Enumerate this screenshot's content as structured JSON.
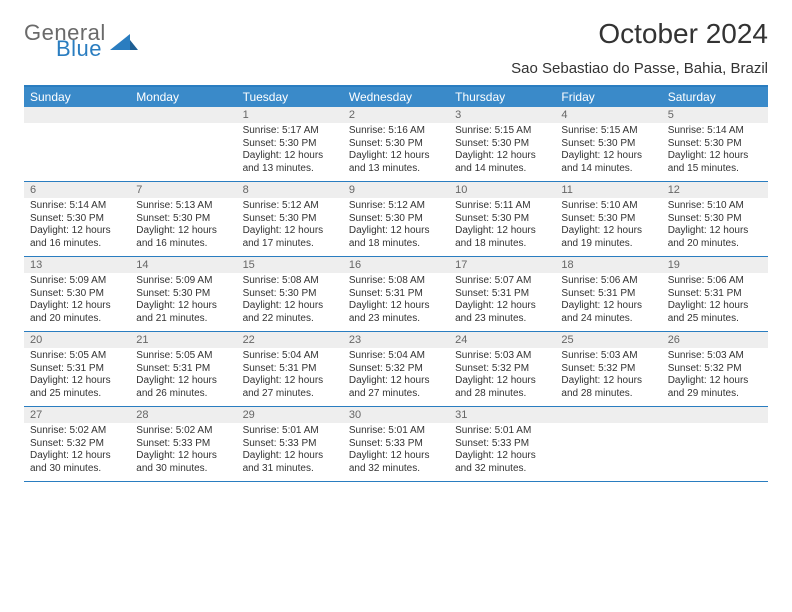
{
  "logo": {
    "word1": "General",
    "word2": "Blue"
  },
  "title": "October 2024",
  "location": "Sao Sebastiao do Passe, Bahia, Brazil",
  "colors": {
    "header_bar": "#3a8ac9",
    "border": "#2a7dc0",
    "daynum_bg": "#eeeeee",
    "text": "#333333",
    "logo_gray": "#6a6a6a",
    "logo_blue": "#2a7dc0"
  },
  "day_headers": [
    "Sunday",
    "Monday",
    "Tuesday",
    "Wednesday",
    "Thursday",
    "Friday",
    "Saturday"
  ],
  "weeks": [
    [
      {
        "n": "",
        "lines": []
      },
      {
        "n": "",
        "lines": []
      },
      {
        "n": "1",
        "lines": [
          "Sunrise: 5:17 AM",
          "Sunset: 5:30 PM",
          "Daylight: 12 hours",
          "and 13 minutes."
        ]
      },
      {
        "n": "2",
        "lines": [
          "Sunrise: 5:16 AM",
          "Sunset: 5:30 PM",
          "Daylight: 12 hours",
          "and 13 minutes."
        ]
      },
      {
        "n": "3",
        "lines": [
          "Sunrise: 5:15 AM",
          "Sunset: 5:30 PM",
          "Daylight: 12 hours",
          "and 14 minutes."
        ]
      },
      {
        "n": "4",
        "lines": [
          "Sunrise: 5:15 AM",
          "Sunset: 5:30 PM",
          "Daylight: 12 hours",
          "and 14 minutes."
        ]
      },
      {
        "n": "5",
        "lines": [
          "Sunrise: 5:14 AM",
          "Sunset: 5:30 PM",
          "Daylight: 12 hours",
          "and 15 minutes."
        ]
      }
    ],
    [
      {
        "n": "6",
        "lines": [
          "Sunrise: 5:14 AM",
          "Sunset: 5:30 PM",
          "Daylight: 12 hours",
          "and 16 minutes."
        ]
      },
      {
        "n": "7",
        "lines": [
          "Sunrise: 5:13 AM",
          "Sunset: 5:30 PM",
          "Daylight: 12 hours",
          "and 16 minutes."
        ]
      },
      {
        "n": "8",
        "lines": [
          "Sunrise: 5:12 AM",
          "Sunset: 5:30 PM",
          "Daylight: 12 hours",
          "and 17 minutes."
        ]
      },
      {
        "n": "9",
        "lines": [
          "Sunrise: 5:12 AM",
          "Sunset: 5:30 PM",
          "Daylight: 12 hours",
          "and 18 minutes."
        ]
      },
      {
        "n": "10",
        "lines": [
          "Sunrise: 5:11 AM",
          "Sunset: 5:30 PM",
          "Daylight: 12 hours",
          "and 18 minutes."
        ]
      },
      {
        "n": "11",
        "lines": [
          "Sunrise: 5:10 AM",
          "Sunset: 5:30 PM",
          "Daylight: 12 hours",
          "and 19 minutes."
        ]
      },
      {
        "n": "12",
        "lines": [
          "Sunrise: 5:10 AM",
          "Sunset: 5:30 PM",
          "Daylight: 12 hours",
          "and 20 minutes."
        ]
      }
    ],
    [
      {
        "n": "13",
        "lines": [
          "Sunrise: 5:09 AM",
          "Sunset: 5:30 PM",
          "Daylight: 12 hours",
          "and 20 minutes."
        ]
      },
      {
        "n": "14",
        "lines": [
          "Sunrise: 5:09 AM",
          "Sunset: 5:30 PM",
          "Daylight: 12 hours",
          "and 21 minutes."
        ]
      },
      {
        "n": "15",
        "lines": [
          "Sunrise: 5:08 AM",
          "Sunset: 5:30 PM",
          "Daylight: 12 hours",
          "and 22 minutes."
        ]
      },
      {
        "n": "16",
        "lines": [
          "Sunrise: 5:08 AM",
          "Sunset: 5:31 PM",
          "Daylight: 12 hours",
          "and 23 minutes."
        ]
      },
      {
        "n": "17",
        "lines": [
          "Sunrise: 5:07 AM",
          "Sunset: 5:31 PM",
          "Daylight: 12 hours",
          "and 23 minutes."
        ]
      },
      {
        "n": "18",
        "lines": [
          "Sunrise: 5:06 AM",
          "Sunset: 5:31 PM",
          "Daylight: 12 hours",
          "and 24 minutes."
        ]
      },
      {
        "n": "19",
        "lines": [
          "Sunrise: 5:06 AM",
          "Sunset: 5:31 PM",
          "Daylight: 12 hours",
          "and 25 minutes."
        ]
      }
    ],
    [
      {
        "n": "20",
        "lines": [
          "Sunrise: 5:05 AM",
          "Sunset: 5:31 PM",
          "Daylight: 12 hours",
          "and 25 minutes."
        ]
      },
      {
        "n": "21",
        "lines": [
          "Sunrise: 5:05 AM",
          "Sunset: 5:31 PM",
          "Daylight: 12 hours",
          "and 26 minutes."
        ]
      },
      {
        "n": "22",
        "lines": [
          "Sunrise: 5:04 AM",
          "Sunset: 5:31 PM",
          "Daylight: 12 hours",
          "and 27 minutes."
        ]
      },
      {
        "n": "23",
        "lines": [
          "Sunrise: 5:04 AM",
          "Sunset: 5:32 PM",
          "Daylight: 12 hours",
          "and 27 minutes."
        ]
      },
      {
        "n": "24",
        "lines": [
          "Sunrise: 5:03 AM",
          "Sunset: 5:32 PM",
          "Daylight: 12 hours",
          "and 28 minutes."
        ]
      },
      {
        "n": "25",
        "lines": [
          "Sunrise: 5:03 AM",
          "Sunset: 5:32 PM",
          "Daylight: 12 hours",
          "and 28 minutes."
        ]
      },
      {
        "n": "26",
        "lines": [
          "Sunrise: 5:03 AM",
          "Sunset: 5:32 PM",
          "Daylight: 12 hours",
          "and 29 minutes."
        ]
      }
    ],
    [
      {
        "n": "27",
        "lines": [
          "Sunrise: 5:02 AM",
          "Sunset: 5:32 PM",
          "Daylight: 12 hours",
          "and 30 minutes."
        ]
      },
      {
        "n": "28",
        "lines": [
          "Sunrise: 5:02 AM",
          "Sunset: 5:33 PM",
          "Daylight: 12 hours",
          "and 30 minutes."
        ]
      },
      {
        "n": "29",
        "lines": [
          "Sunrise: 5:01 AM",
          "Sunset: 5:33 PM",
          "Daylight: 12 hours",
          "and 31 minutes."
        ]
      },
      {
        "n": "30",
        "lines": [
          "Sunrise: 5:01 AM",
          "Sunset: 5:33 PM",
          "Daylight: 12 hours",
          "and 32 minutes."
        ]
      },
      {
        "n": "31",
        "lines": [
          "Sunrise: 5:01 AM",
          "Sunset: 5:33 PM",
          "Daylight: 12 hours",
          "and 32 minutes."
        ]
      },
      {
        "n": "",
        "lines": []
      },
      {
        "n": "",
        "lines": []
      }
    ]
  ]
}
